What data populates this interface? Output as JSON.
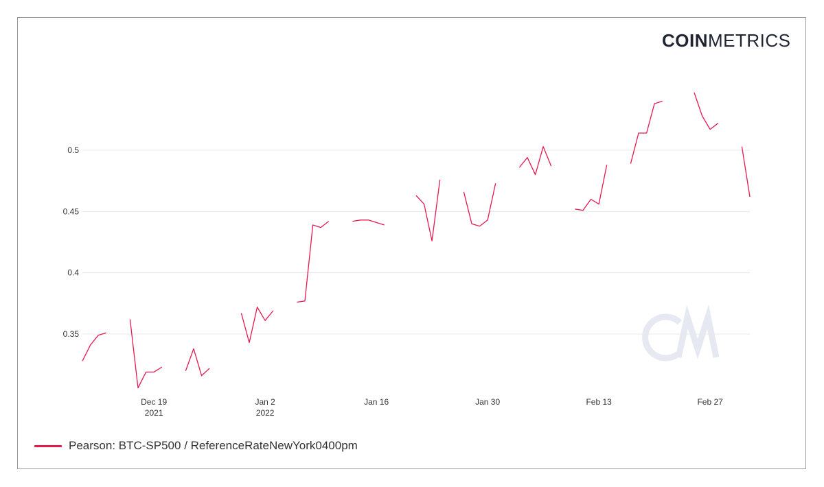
{
  "brand": {
    "bold": "COIN",
    "light": "METRICS",
    "watermark": "CM"
  },
  "colors": {
    "line": "#e5194c",
    "grid": "#e8e8e8",
    "text": "#333333",
    "watermark": "#e6e8f2"
  },
  "chart_data": {
    "type": "line",
    "title": "",
    "xlabel": "",
    "ylabel": "",
    "ylim": [
      0.3,
      0.55
    ],
    "y_ticks": [
      {
        "value": 0.35,
        "label": "0.35"
      },
      {
        "value": 0.4,
        "label": "0.4"
      },
      {
        "value": 0.45,
        "label": "0.45"
      },
      {
        "value": 0.5,
        "label": "0.5"
      }
    ],
    "x_ticks": [
      {
        "date": "2021-12-19",
        "label": "Dec 19",
        "sublabel": "2021"
      },
      {
        "date": "2022-01-02",
        "label": "Jan 2",
        "sublabel": "2022"
      },
      {
        "date": "2022-01-16",
        "label": "Jan 16",
        "sublabel": ""
      },
      {
        "date": "2022-01-30",
        "label": "Jan 30",
        "sublabel": ""
      },
      {
        "date": "2022-02-13",
        "label": "Feb 13",
        "sublabel": ""
      },
      {
        "date": "2022-02-27",
        "label": "Feb 27",
        "sublabel": ""
      }
    ],
    "grid": true,
    "legend_position": "bottom-left",
    "series": [
      {
        "name": "Pearson: BTC-SP500 / ReferenceRateNewYork0400pm",
        "points": [
          [
            "2021-12-10",
            0.328
          ],
          [
            "2021-12-11",
            0.341
          ],
          [
            "2021-12-12",
            0.349
          ],
          [
            "2021-12-13",
            0.351
          ],
          [
            "2021-12-14",
            null
          ],
          [
            "2021-12-15",
            null
          ],
          [
            "2021-12-16",
            0.362
          ],
          [
            "2021-12-17",
            0.306
          ],
          [
            "2021-12-18",
            0.319
          ],
          [
            "2021-12-19",
            0.319
          ],
          [
            "2021-12-20",
            0.323
          ],
          [
            "2021-12-21",
            null
          ],
          [
            "2021-12-22",
            null
          ],
          [
            "2021-12-23",
            0.32
          ],
          [
            "2021-12-24",
            0.338
          ],
          [
            "2021-12-25",
            0.316
          ],
          [
            "2021-12-26",
            0.322
          ],
          [
            "2021-12-27",
            null
          ],
          [
            "2021-12-28",
            null
          ],
          [
            "2021-12-29",
            null
          ],
          [
            "2021-12-30",
            0.367
          ],
          [
            "2021-12-31",
            0.343
          ],
          [
            "2022-01-01",
            0.372
          ],
          [
            "2022-01-02",
            0.361
          ],
          [
            "2022-01-03",
            0.369
          ],
          [
            "2022-01-04",
            null
          ],
          [
            "2022-01-05",
            null
          ],
          [
            "2022-01-06",
            0.376
          ],
          [
            "2022-01-07",
            0.377
          ],
          [
            "2022-01-08",
            0.439
          ],
          [
            "2022-01-09",
            0.437
          ],
          [
            "2022-01-10",
            0.442
          ],
          [
            "2022-01-11",
            null
          ],
          [
            "2022-01-12",
            null
          ],
          [
            "2022-01-13",
            0.442
          ],
          [
            "2022-01-14",
            0.443
          ],
          [
            "2022-01-15",
            0.443
          ],
          [
            "2022-01-16",
            0.441
          ],
          [
            "2022-01-17",
            0.439
          ],
          [
            "2022-01-18",
            null
          ],
          [
            "2022-01-19",
            null
          ],
          [
            "2022-01-20",
            null
          ],
          [
            "2022-01-21",
            0.463
          ],
          [
            "2022-01-22",
            0.456
          ],
          [
            "2022-01-23",
            0.426
          ],
          [
            "2022-01-24",
            0.476
          ],
          [
            "2022-01-25",
            null
          ],
          [
            "2022-01-26",
            null
          ],
          [
            "2022-01-27",
            0.466
          ],
          [
            "2022-01-28",
            0.44
          ],
          [
            "2022-01-29",
            0.438
          ],
          [
            "2022-01-30",
            0.443
          ],
          [
            "2022-01-31",
            0.473
          ],
          [
            "2022-02-01",
            null
          ],
          [
            "2022-02-02",
            null
          ],
          [
            "2022-02-03",
            0.486
          ],
          [
            "2022-02-04",
            0.494
          ],
          [
            "2022-02-05",
            0.48
          ],
          [
            "2022-02-06",
            0.503
          ],
          [
            "2022-02-07",
            0.487
          ],
          [
            "2022-02-08",
            null
          ],
          [
            "2022-02-09",
            null
          ],
          [
            "2022-02-10",
            0.452
          ],
          [
            "2022-02-11",
            0.451
          ],
          [
            "2022-02-12",
            0.46
          ],
          [
            "2022-02-13",
            0.456
          ],
          [
            "2022-02-14",
            0.488
          ],
          [
            "2022-02-15",
            null
          ],
          [
            "2022-02-16",
            null
          ],
          [
            "2022-02-17",
            0.489
          ],
          [
            "2022-02-18",
            0.514
          ],
          [
            "2022-02-19",
            0.514
          ],
          [
            "2022-02-20",
            0.538
          ],
          [
            "2022-02-21",
            0.54
          ],
          [
            "2022-02-22",
            null
          ],
          [
            "2022-02-23",
            null
          ],
          [
            "2022-02-24",
            null
          ],
          [
            "2022-02-25",
            0.547
          ],
          [
            "2022-02-26",
            0.528
          ],
          [
            "2022-02-27",
            0.517
          ],
          [
            "2022-02-28",
            0.522
          ],
          [
            "2022-03-01",
            null
          ],
          [
            "2022-03-02",
            null
          ],
          [
            "2022-03-03",
            0.503
          ],
          [
            "2022-03-04",
            0.462
          ]
        ]
      }
    ]
  }
}
